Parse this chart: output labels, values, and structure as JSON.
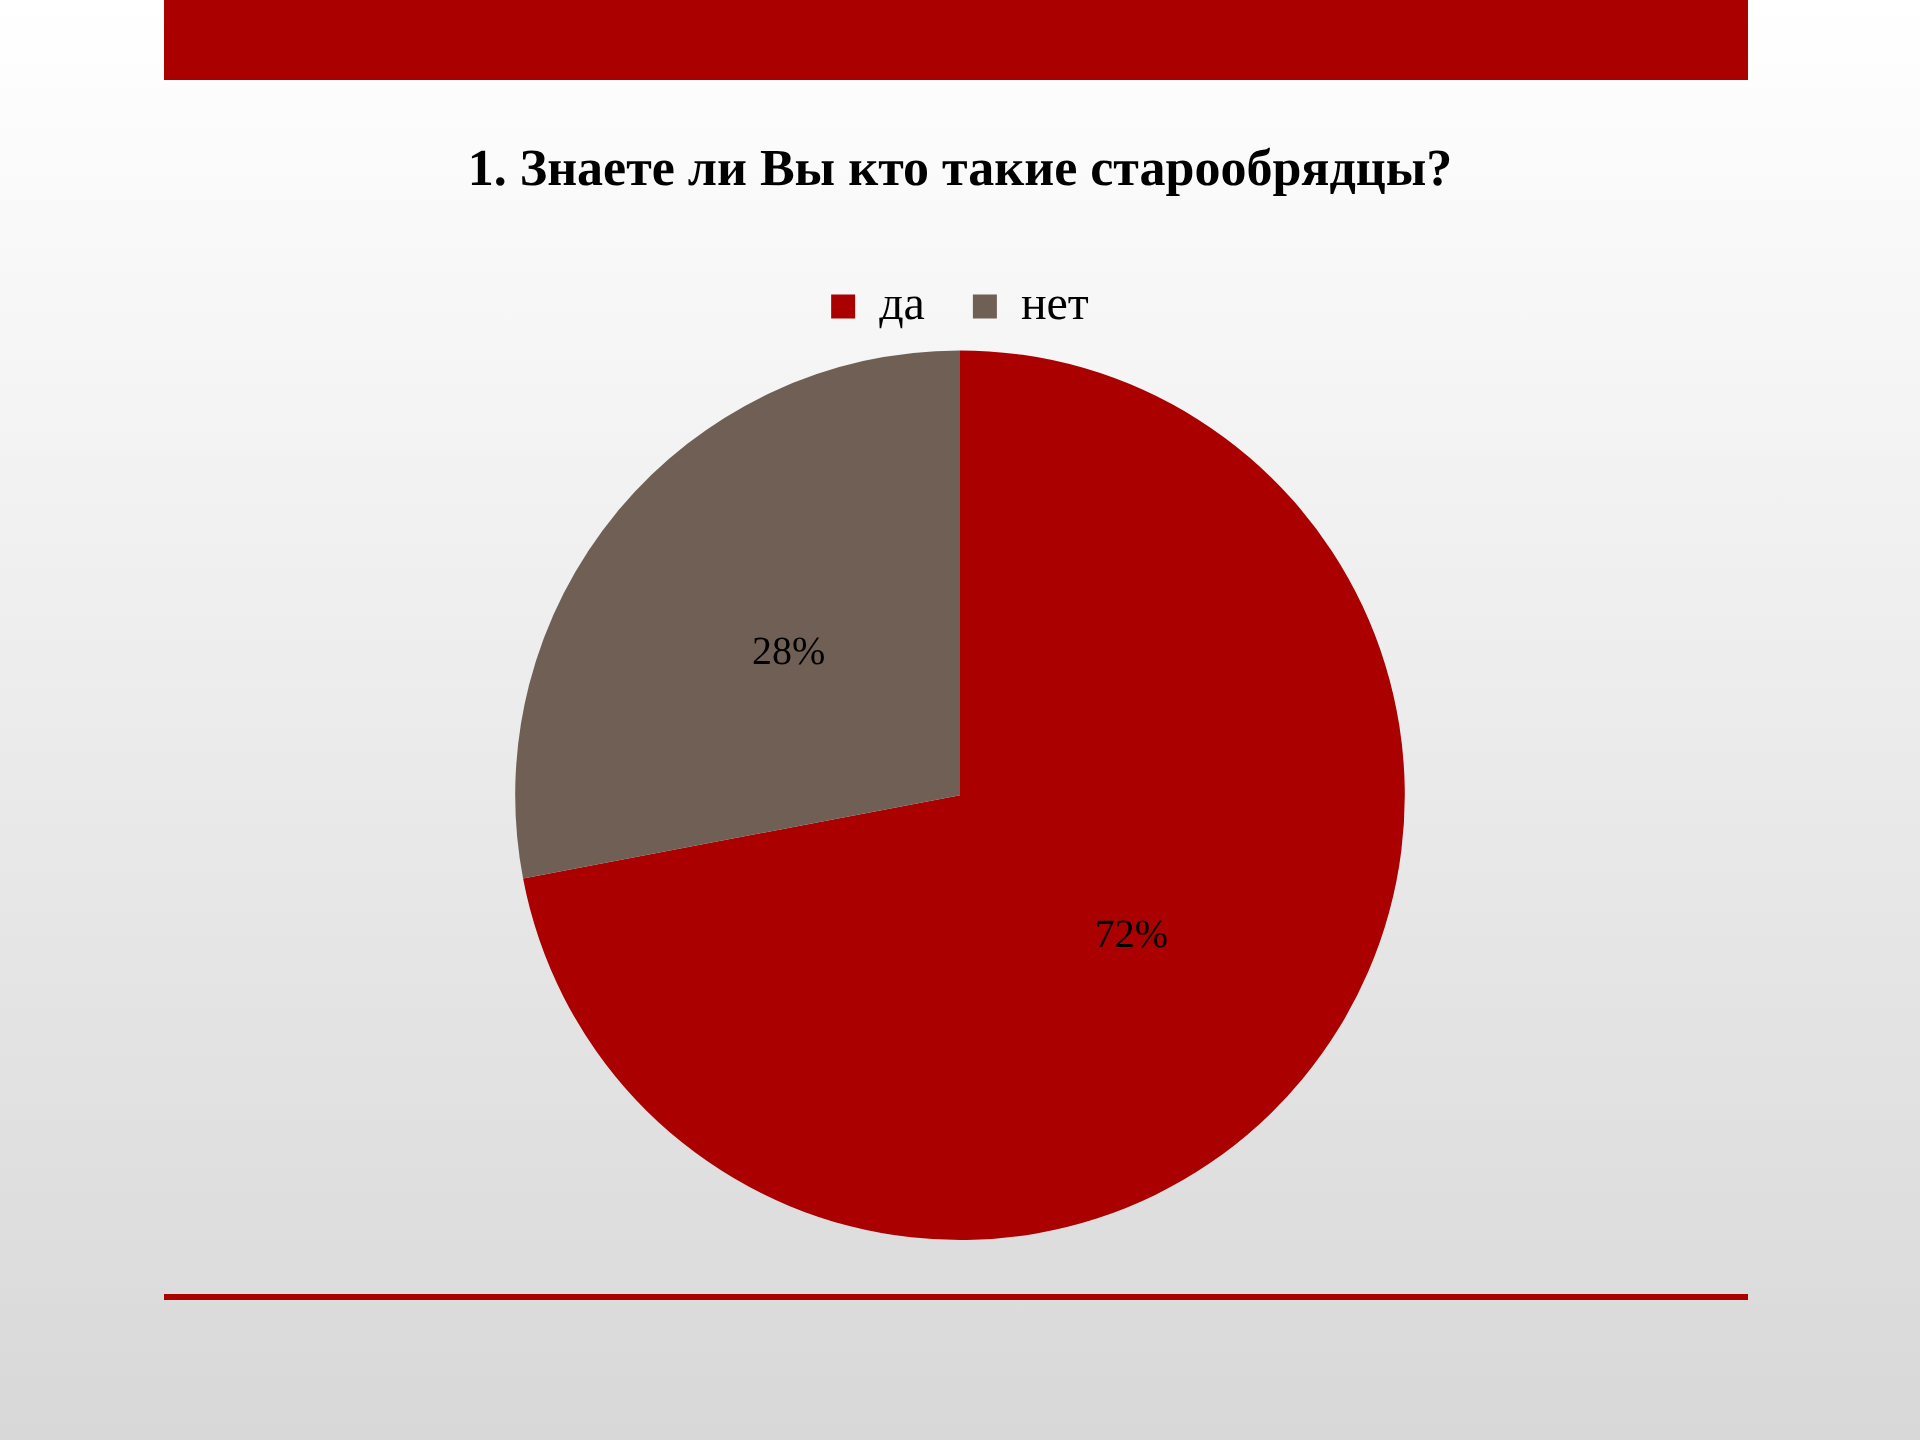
{
  "chart_data": {
    "type": "pie",
    "title": "1. Знаете ли Вы кто такие старообрядцы?",
    "categories": [
      "да",
      "нет"
    ],
    "values": [
      72,
      28
    ],
    "colors": [
      "#aa0000",
      "#6f5f55"
    ],
    "value_labels": [
      "72%",
      "28%"
    ],
    "legend": "top"
  }
}
